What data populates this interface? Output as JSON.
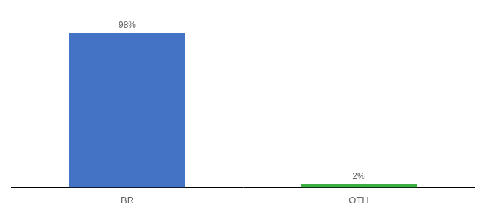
{
  "chart_data": {
    "type": "bar",
    "categories": [
      "BR",
      "OTH"
    ],
    "values": [
      98,
      2
    ],
    "value_labels": [
      "98%",
      "2%"
    ],
    "colors": [
      "#4472C4",
      "#3CB043"
    ],
    "ylim": [
      0,
      108
    ],
    "grid": false,
    "data_labels": true,
    "tick_labels": "x"
  }
}
